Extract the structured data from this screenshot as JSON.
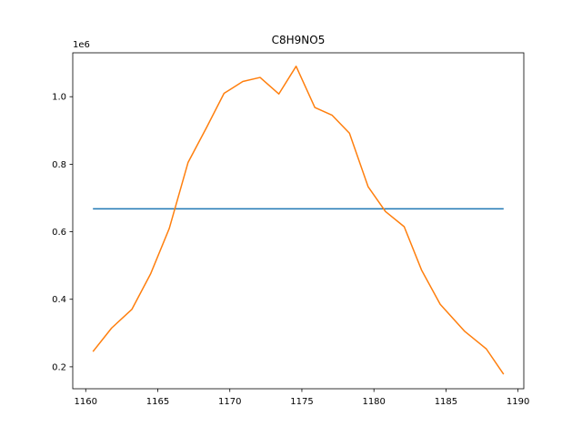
{
  "chart_data": {
    "type": "line",
    "title": "C8H9NO5",
    "xlabel": "",
    "ylabel": "",
    "y_offset_label": "1e6",
    "xlim": [
      1159.1,
      1190.4
    ],
    "ylim": [
      0.135,
      1.13
    ],
    "y_scale_factor": 1000000,
    "x_ticks": [
      1160,
      1165,
      1170,
      1175,
      1180,
      1185,
      1190
    ],
    "y_ticks": [
      0.2,
      0.4,
      0.6,
      0.8,
      1.0
    ],
    "y_tick_labels": [
      "0.2",
      "0.4",
      "0.6",
      "0.8",
      "1.0"
    ],
    "grid": false,
    "legend": "none",
    "series": [
      {
        "color": "#1f77b4",
        "x": [
          1160.5,
          1189.0
        ],
        "y": [
          0.668,
          0.668
        ]
      },
      {
        "color": "#ff7f0e",
        "x": [
          1160.5,
          1161.8,
          1163.2,
          1164.5,
          1165.8,
          1167.1,
          1168.4,
          1169.6,
          1170.9,
          1172.1,
          1173.4,
          1174.6,
          1175.9,
          1177.1,
          1178.3,
          1179.6,
          1180.8,
          1182.1,
          1183.3,
          1184.6,
          1186.3,
          1187.8,
          1189.0
        ],
        "y": [
          0.245,
          0.315,
          0.37,
          0.475,
          0.61,
          0.805,
          0.91,
          1.01,
          1.045,
          1.057,
          1.008,
          1.09,
          0.968,
          0.945,
          0.892,
          0.733,
          0.66,
          0.615,
          0.487,
          0.385,
          0.305,
          0.253,
          0.178
        ]
      }
    ]
  }
}
